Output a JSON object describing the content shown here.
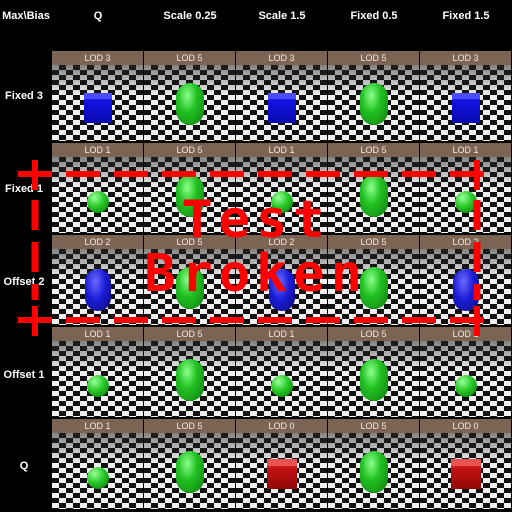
{
  "corner_label": "Max\\Bias",
  "columns": [
    "Q",
    "Scale 0.25",
    "Scale 1.5",
    "Fixed 0.5",
    "Fixed 1.5"
  ],
  "rows": [
    {
      "label": "Fixed 3",
      "cells": [
        {
          "lod": "LOD 3",
          "object": "cube-blue"
        },
        {
          "lod": "LOD 5",
          "object": "capsule"
        },
        {
          "lod": "LOD 3",
          "object": "cube-blue"
        },
        {
          "lod": "LOD 5",
          "object": "capsule"
        },
        {
          "lod": "LOD 3",
          "object": "cube-blue"
        }
      ]
    },
    {
      "label": "Fixed 1",
      "cells": [
        {
          "lod": "LOD 1",
          "object": "sphere"
        },
        {
          "lod": "LOD 5",
          "object": "capsule"
        },
        {
          "lod": "LOD 1",
          "object": "sphere"
        },
        {
          "lod": "LOD 5",
          "object": "capsule"
        },
        {
          "lod": "LOD 1",
          "object": "sphere"
        }
      ]
    },
    {
      "label": "Offset 2",
      "cells": [
        {
          "lod": "LOD 2",
          "object": "capsule-blue"
        },
        {
          "lod": "LOD 5",
          "object": "capsule"
        },
        {
          "lod": "LOD 2",
          "object": "capsule-blue"
        },
        {
          "lod": "LOD 5",
          "object": "capsule"
        },
        {
          "lod": "LOD 2",
          "object": "capsule-blue"
        }
      ]
    },
    {
      "label": "Offset 1",
      "cells": [
        {
          "lod": "LOD 1",
          "object": "sphere"
        },
        {
          "lod": "LOD 5",
          "object": "capsule"
        },
        {
          "lod": "LOD 1",
          "object": "sphere"
        },
        {
          "lod": "LOD 5",
          "object": "capsule"
        },
        {
          "lod": "LOD 1",
          "object": "sphere"
        }
      ]
    },
    {
      "label": "Q",
      "cells": [
        {
          "lod": "LOD 1",
          "object": "sphere"
        },
        {
          "lod": "LOD 5",
          "object": "capsule"
        },
        {
          "lod": "LOD 0",
          "object": "cube-red"
        },
        {
          "lod": "LOD 5",
          "object": "capsule"
        },
        {
          "lod": "LOD 0",
          "object": "cube-red"
        }
      ]
    }
  ],
  "overlay": {
    "line1": "Test",
    "line2": "Broken",
    "color": "#ff0000"
  }
}
